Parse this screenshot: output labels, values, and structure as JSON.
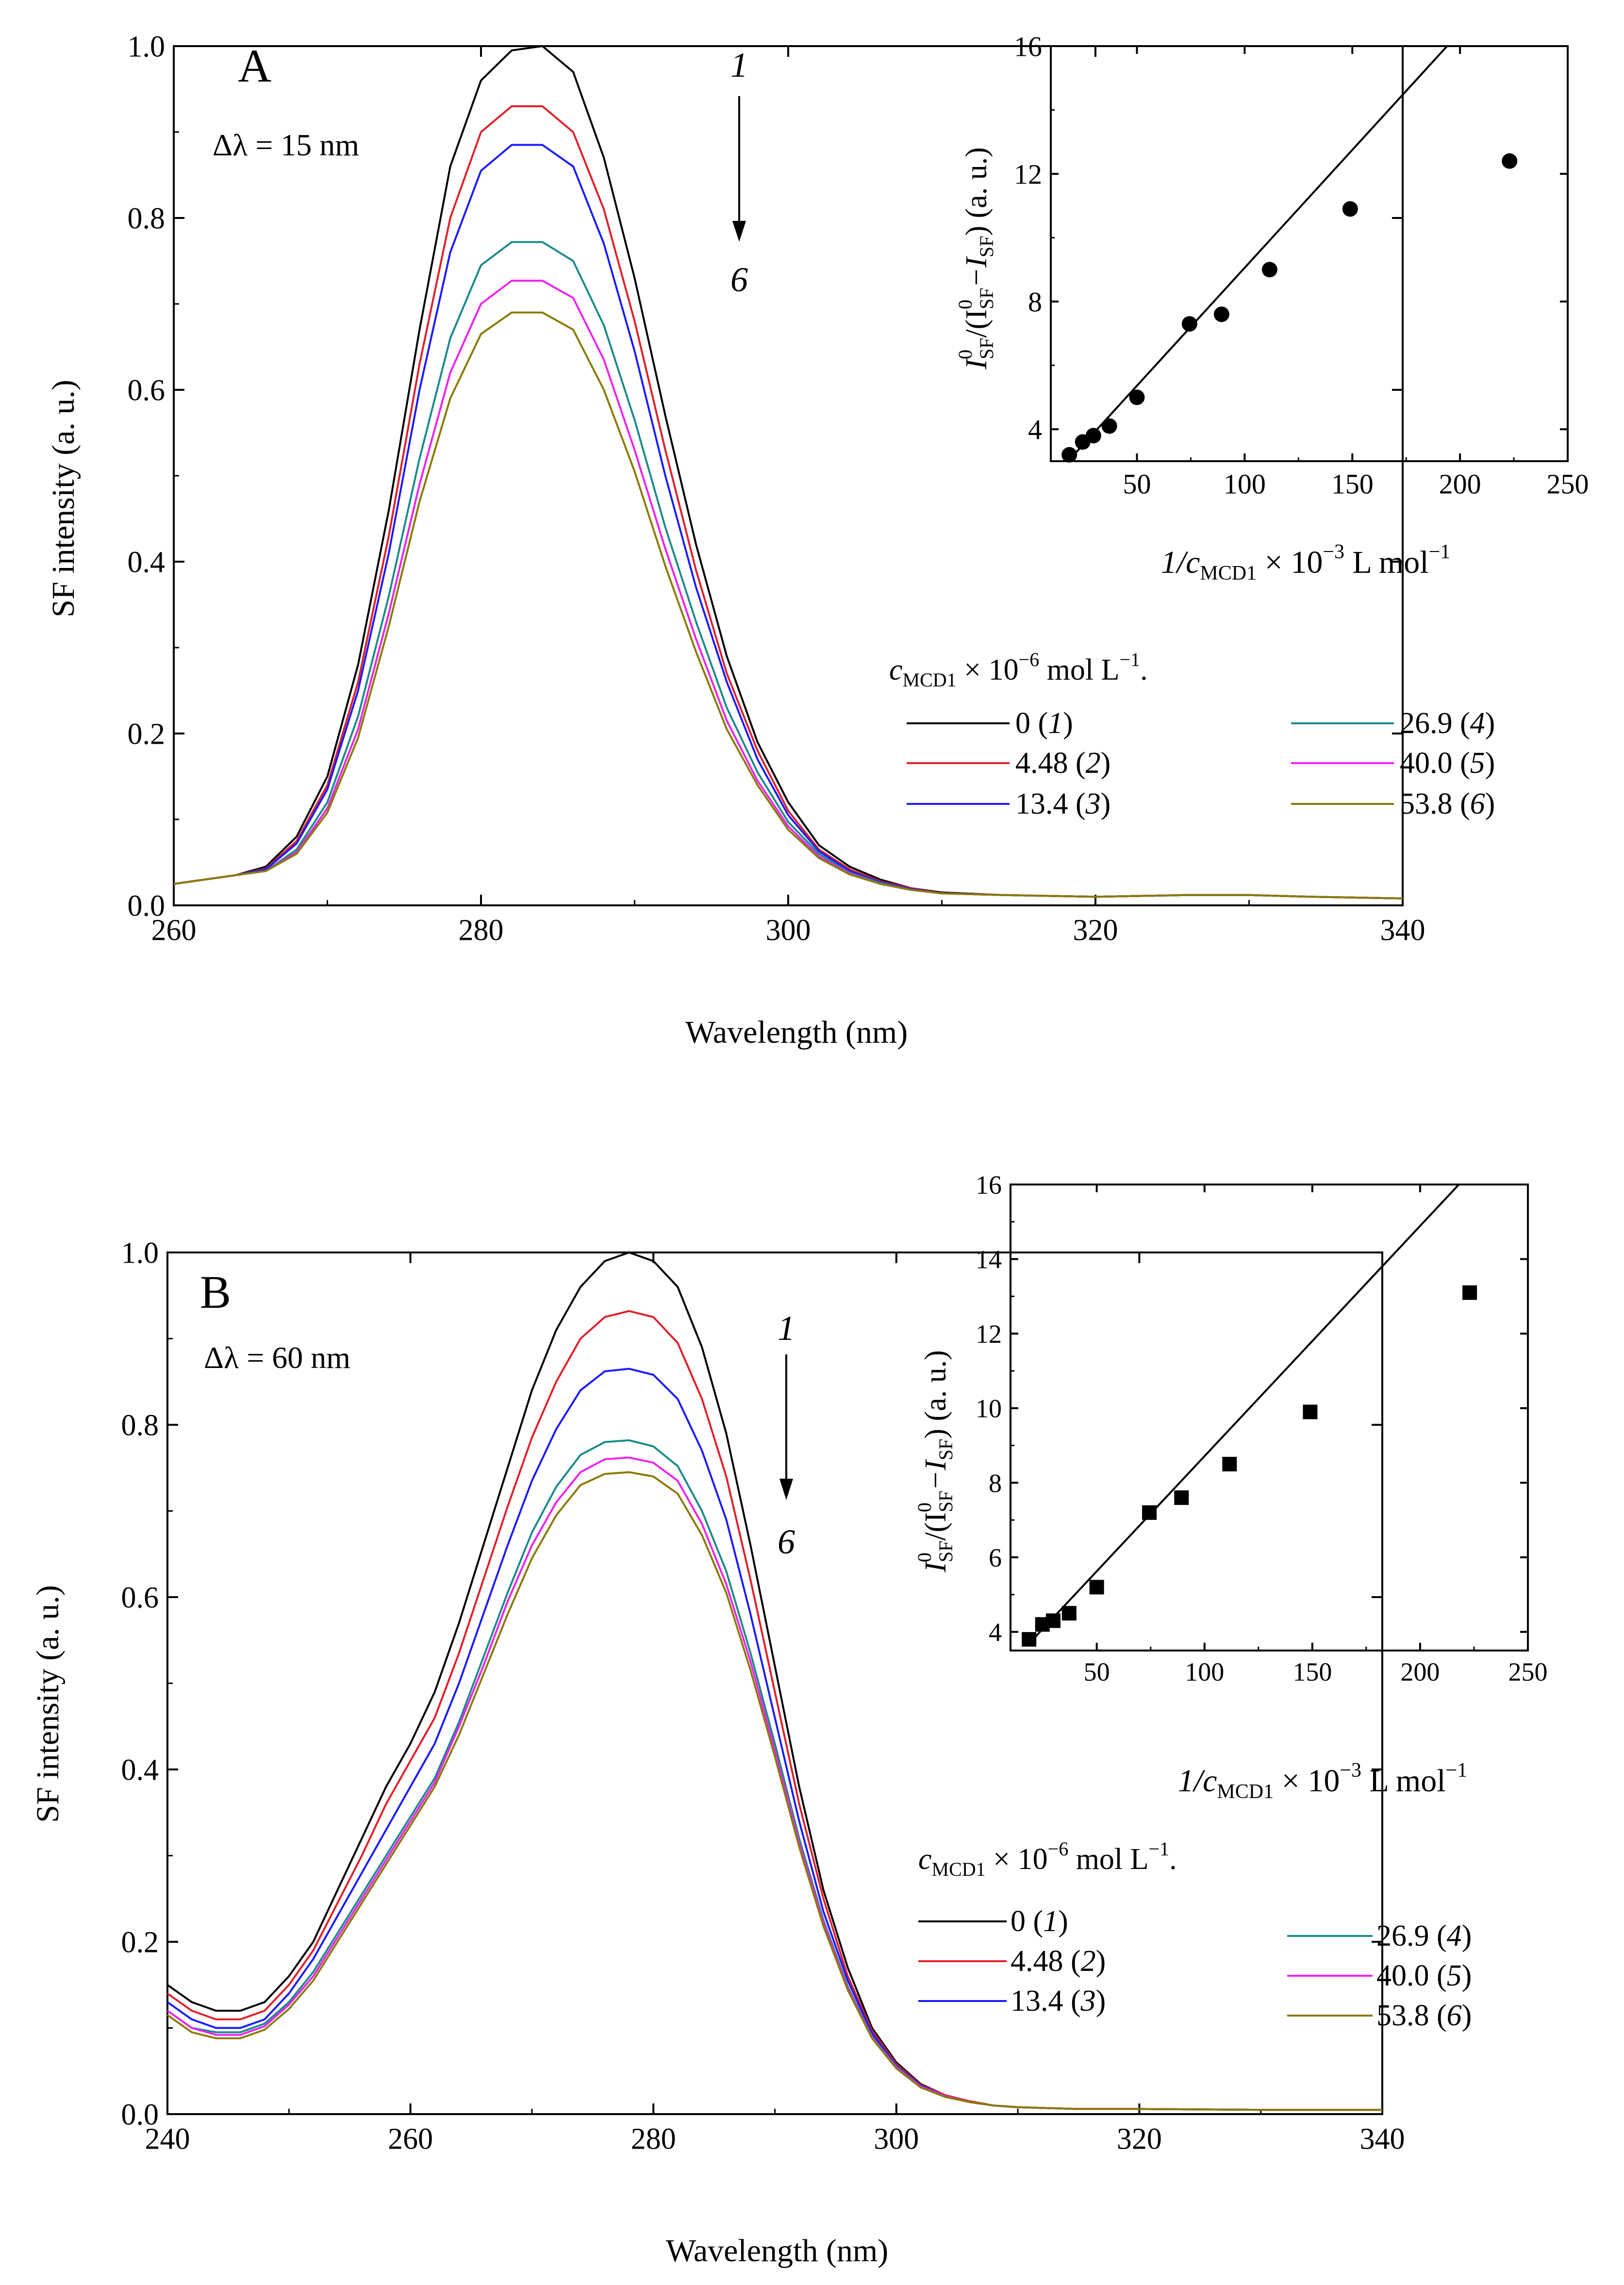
{
  "figure": {
    "panels": [
      {
        "id": "A",
        "panel_label": "A",
        "delta": "Δλ = 15 nm",
        "xlabel": "Wavelength (nm)",
        "ylabel": "SF intensity (a. u.)",
        "arrow_top": "1",
        "arrow_bottom": "6",
        "legend": {
          "title_c": "c",
          "title_sub": "MCD1",
          "title_mid": " × 10",
          "title_exp": "−6",
          "title_unit": " mol L",
          "title_unit_exp": "−1",
          "title_end": ".",
          "entries": [
            {
              "value": "0",
              "idx": "1"
            },
            {
              "value": "4.48",
              "idx": "2"
            },
            {
              "value": "13.4",
              "idx": "3"
            },
            {
              "value": "26.9",
              "idx": "4"
            },
            {
              "value": "40.0",
              "idx": "5"
            },
            {
              "value": "53.8",
              "idx": "6"
            }
          ]
        },
        "inset": {
          "xlabel_pre": "1/c",
          "xlabel_sub": "MCD1",
          "xlabel_post": " × 10",
          "xlabel_exp": "−3",
          "xlabel_unit": " L mol",
          "xlabel_unit_exp": "−1",
          "ylabel_i": "I",
          "ylabel_sup": "0",
          "ylabel_sub": "SF",
          "ylabel_mid": "/(I",
          "ylabel_minus": "−I",
          "ylabel_tail": ") (a. u.)"
        }
      },
      {
        "id": "B",
        "panel_label": "B",
        "delta": "Δλ = 60 nm",
        "xlabel": "Wavelength (nm)",
        "ylabel": "SF intensity (a. u.)",
        "arrow_top": "1",
        "arrow_bottom": "6",
        "legend": {
          "title_c": "c",
          "title_sub": "MCD1",
          "title_mid": " × 10",
          "title_exp": "−6",
          "title_unit": " mol L",
          "title_unit_exp": "−1",
          "title_end": ".",
          "entries": [
            {
              "value": "0",
              "idx": "1"
            },
            {
              "value": "4.48",
              "idx": "2"
            },
            {
              "value": "13.4",
              "idx": "3"
            },
            {
              "value": "26.9",
              "idx": "4"
            },
            {
              "value": "40.0",
              "idx": "5"
            },
            {
              "value": "53.8",
              "idx": "6"
            }
          ]
        },
        "inset": {
          "xlabel_pre": "1/c",
          "xlabel_sub": "MCD1",
          "xlabel_post": " × 10",
          "xlabel_exp": "−3",
          "xlabel_unit": " L mol",
          "xlabel_unit_exp": "−1",
          "ylabel_i": "I",
          "ylabel_sup": "0",
          "ylabel_sub": "SF",
          "ylabel_mid": "/(I",
          "ylabel_minus": "−I",
          "ylabel_tail": ") (a. u.)"
        }
      }
    ]
  },
  "chart_data": [
    {
      "type": "line",
      "id": "A-main",
      "title": "",
      "xlabel": "Wavelength (nm)",
      "ylabel": "SF intensity (a. u.)",
      "xlim": [
        260,
        340
      ],
      "ylim": [
        0,
        1.0
      ],
      "xticks": [
        260,
        280,
        300,
        320,
        340
      ],
      "yticks": [
        0.0,
        0.2,
        0.4,
        0.6,
        0.8,
        1.0
      ],
      "x": [
        260,
        262,
        264,
        266,
        268,
        270,
        272,
        274,
        276,
        278,
        280,
        282,
        284,
        286,
        288,
        290,
        292,
        294,
        296,
        298,
        300,
        302,
        304,
        306,
        308,
        310,
        314,
        320,
        326,
        330,
        334,
        340
      ],
      "series": [
        {
          "name": "0 (1)",
          "color": "#000000",
          "values": [
            0.025,
            0.03,
            0.035,
            0.045,
            0.08,
            0.15,
            0.28,
            0.46,
            0.67,
            0.86,
            0.96,
            0.995,
            1.0,
            0.97,
            0.87,
            0.73,
            0.57,
            0.42,
            0.29,
            0.19,
            0.12,
            0.07,
            0.045,
            0.03,
            0.02,
            0.015,
            0.012,
            0.01,
            0.012,
            0.012,
            0.01,
            0.008
          ]
        },
        {
          "name": "4.48 (2)",
          "color": "#e0202a",
          "values": [
            0.025,
            0.03,
            0.035,
            0.043,
            0.075,
            0.14,
            0.26,
            0.43,
            0.63,
            0.8,
            0.9,
            0.93,
            0.93,
            0.9,
            0.81,
            0.68,
            0.53,
            0.39,
            0.27,
            0.18,
            0.11,
            0.065,
            0.042,
            0.028,
            0.02,
            0.014,
            0.012,
            0.01,
            0.012,
            0.012,
            0.01,
            0.008
          ]
        },
        {
          "name": "13.4 (3)",
          "color": "#1a1aff",
          "values": [
            0.025,
            0.03,
            0.035,
            0.042,
            0.072,
            0.135,
            0.25,
            0.41,
            0.6,
            0.76,
            0.855,
            0.885,
            0.885,
            0.86,
            0.77,
            0.645,
            0.5,
            0.37,
            0.26,
            0.17,
            0.105,
            0.063,
            0.04,
            0.027,
            0.019,
            0.014,
            0.012,
            0.01,
            0.012,
            0.012,
            0.01,
            0.008
          ]
        },
        {
          "name": "26.9 (4)",
          "color": "#1a8a8a",
          "values": [
            0.025,
            0.03,
            0.035,
            0.04,
            0.065,
            0.12,
            0.22,
            0.36,
            0.52,
            0.66,
            0.745,
            0.772,
            0.772,
            0.75,
            0.675,
            0.565,
            0.44,
            0.33,
            0.23,
            0.155,
            0.097,
            0.06,
            0.038,
            0.026,
            0.018,
            0.014,
            0.012,
            0.01,
            0.012,
            0.012,
            0.01,
            0.008
          ]
        },
        {
          "name": "40.0 (5)",
          "color": "#ee22ee",
          "values": [
            0.025,
            0.03,
            0.035,
            0.04,
            0.062,
            0.113,
            0.205,
            0.34,
            0.49,
            0.62,
            0.7,
            0.727,
            0.727,
            0.707,
            0.635,
            0.53,
            0.415,
            0.31,
            0.215,
            0.145,
            0.092,
            0.057,
            0.037,
            0.025,
            0.018,
            0.014,
            0.012,
            0.01,
            0.012,
            0.012,
            0.01,
            0.008
          ]
        },
        {
          "name": "53.8 (6)",
          "color": "#8a7a00",
          "values": [
            0.025,
            0.03,
            0.035,
            0.04,
            0.06,
            0.108,
            0.195,
            0.325,
            0.47,
            0.59,
            0.665,
            0.69,
            0.69,
            0.67,
            0.6,
            0.505,
            0.395,
            0.295,
            0.205,
            0.14,
            0.088,
            0.055,
            0.036,
            0.025,
            0.018,
            0.014,
            0.012,
            0.01,
            0.012,
            0.012,
            0.01,
            0.008
          ]
        }
      ]
    },
    {
      "type": "scatter",
      "id": "A-inset",
      "marker": "circle",
      "xlim": [
        10,
        250
      ],
      "ylim": [
        3,
        16
      ],
      "xticks": [
        50,
        100,
        150,
        200,
        250
      ],
      "yticks": [
        4,
        8,
        12,
        16
      ],
      "points": [
        [
          18.6,
          3.2
        ],
        [
          24.8,
          3.6
        ],
        [
          29.8,
          3.8
        ],
        [
          37.2,
          4.1
        ],
        [
          50,
          5.0
        ],
        [
          74.4,
          7.3
        ],
        [
          89.3,
          7.6
        ],
        [
          111.6,
          9.0
        ],
        [
          149,
          10.9
        ],
        [
          223,
          12.4
        ]
      ],
      "fit_line": [
        [
          18,
          3.0
        ],
        [
          194,
          16
        ]
      ]
    },
    {
      "type": "line",
      "id": "B-main",
      "title": "",
      "xlabel": "Wavelength (nm)",
      "ylabel": "SF intensity (a. u.)",
      "xlim": [
        240,
        340
      ],
      "ylim": [
        0,
        1.0
      ],
      "xticks": [
        240,
        260,
        280,
        300,
        320,
        340
      ],
      "yticks": [
        0.0,
        0.2,
        0.4,
        0.6,
        0.8,
        1.0
      ],
      "x": [
        240,
        242,
        244,
        246,
        248,
        250,
        252,
        254,
        256,
        258,
        260,
        262,
        264,
        266,
        268,
        270,
        272,
        274,
        276,
        278,
        280,
        282,
        284,
        286,
        288,
        290,
        292,
        294,
        296,
        298,
        300,
        302,
        304,
        306,
        308,
        310,
        315,
        320,
        330,
        340
      ],
      "series": [
        {
          "name": "0 (1)",
          "color": "#000000",
          "values": [
            0.15,
            0.13,
            0.12,
            0.12,
            0.13,
            0.16,
            0.2,
            0.26,
            0.32,
            0.38,
            0.43,
            0.49,
            0.57,
            0.66,
            0.75,
            0.84,
            0.91,
            0.96,
            0.99,
            1.0,
            0.99,
            0.96,
            0.89,
            0.79,
            0.66,
            0.52,
            0.38,
            0.26,
            0.17,
            0.1,
            0.06,
            0.035,
            0.022,
            0.015,
            0.01,
            0.008,
            0.006,
            0.006,
            0.005,
            0.005
          ]
        },
        {
          "name": "4.48 (2)",
          "color": "#e0202a",
          "values": [
            0.14,
            0.12,
            0.11,
            0.11,
            0.12,
            0.15,
            0.19,
            0.245,
            0.3,
            0.36,
            0.41,
            0.46,
            0.535,
            0.62,
            0.705,
            0.785,
            0.85,
            0.9,
            0.925,
            0.932,
            0.925,
            0.895,
            0.83,
            0.74,
            0.62,
            0.49,
            0.36,
            0.25,
            0.16,
            0.097,
            0.058,
            0.034,
            0.022,
            0.015,
            0.01,
            0.008,
            0.006,
            0.006,
            0.005,
            0.005
          ]
        },
        {
          "name": "13.4 (3)",
          "color": "#1a1aff",
          "values": [
            0.13,
            0.11,
            0.1,
            0.1,
            0.11,
            0.14,
            0.18,
            0.23,
            0.28,
            0.33,
            0.38,
            0.43,
            0.5,
            0.58,
            0.66,
            0.735,
            0.795,
            0.84,
            0.862,
            0.865,
            0.858,
            0.83,
            0.77,
            0.69,
            0.58,
            0.46,
            0.34,
            0.235,
            0.155,
            0.094,
            0.056,
            0.033,
            0.021,
            0.014,
            0.01,
            0.008,
            0.006,
            0.006,
            0.005,
            0.005
          ]
        },
        {
          "name": "26.9 (4)",
          "color": "#1a8a8a",
          "values": [
            0.12,
            0.1,
            0.095,
            0.095,
            0.105,
            0.13,
            0.165,
            0.21,
            0.255,
            0.3,
            0.345,
            0.39,
            0.455,
            0.53,
            0.605,
            0.675,
            0.728,
            0.765,
            0.78,
            0.782,
            0.775,
            0.752,
            0.7,
            0.63,
            0.535,
            0.43,
            0.32,
            0.225,
            0.148,
            0.09,
            0.055,
            0.032,
            0.021,
            0.014,
            0.01,
            0.008,
            0.006,
            0.006,
            0.005,
            0.005
          ]
        },
        {
          "name": "40.0 (5)",
          "color": "#ee22ee",
          "values": [
            0.12,
            0.1,
            0.092,
            0.092,
            0.102,
            0.127,
            0.16,
            0.205,
            0.25,
            0.295,
            0.34,
            0.385,
            0.45,
            0.52,
            0.595,
            0.66,
            0.71,
            0.745,
            0.76,
            0.762,
            0.756,
            0.735,
            0.685,
            0.615,
            0.525,
            0.422,
            0.315,
            0.222,
            0.146,
            0.089,
            0.054,
            0.032,
            0.021,
            0.014,
            0.01,
            0.008,
            0.006,
            0.006,
            0.005,
            0.005
          ]
        },
        {
          "name": "53.8 (6)",
          "color": "#8a7a00",
          "values": [
            0.115,
            0.095,
            0.088,
            0.088,
            0.098,
            0.122,
            0.155,
            0.2,
            0.245,
            0.29,
            0.335,
            0.38,
            0.44,
            0.51,
            0.58,
            0.645,
            0.695,
            0.73,
            0.743,
            0.745,
            0.74,
            0.72,
            0.672,
            0.605,
            0.515,
            0.415,
            0.31,
            0.218,
            0.144,
            0.088,
            0.053,
            0.031,
            0.02,
            0.014,
            0.01,
            0.008,
            0.006,
            0.006,
            0.005,
            0.005
          ]
        }
      ]
    },
    {
      "type": "scatter",
      "id": "B-inset",
      "marker": "square",
      "xlim": [
        10,
        250
      ],
      "ylim": [
        3.5,
        16
      ],
      "xticks": [
        50,
        100,
        150,
        200,
        250
      ],
      "yticks": [
        4,
        6,
        8,
        10,
        12,
        14,
        16
      ],
      "points": [
        [
          18.6,
          3.8
        ],
        [
          24.8,
          4.2
        ],
        [
          29.8,
          4.3
        ],
        [
          37.2,
          4.5
        ],
        [
          50,
          5.2
        ],
        [
          74.4,
          7.2
        ],
        [
          89.3,
          7.6
        ],
        [
          111.6,
          8.5
        ],
        [
          149,
          9.9
        ],
        [
          223,
          13.1
        ]
      ],
      "fit_line": [
        [
          18,
          3.65
        ],
        [
          218,
          16
        ]
      ]
    }
  ]
}
